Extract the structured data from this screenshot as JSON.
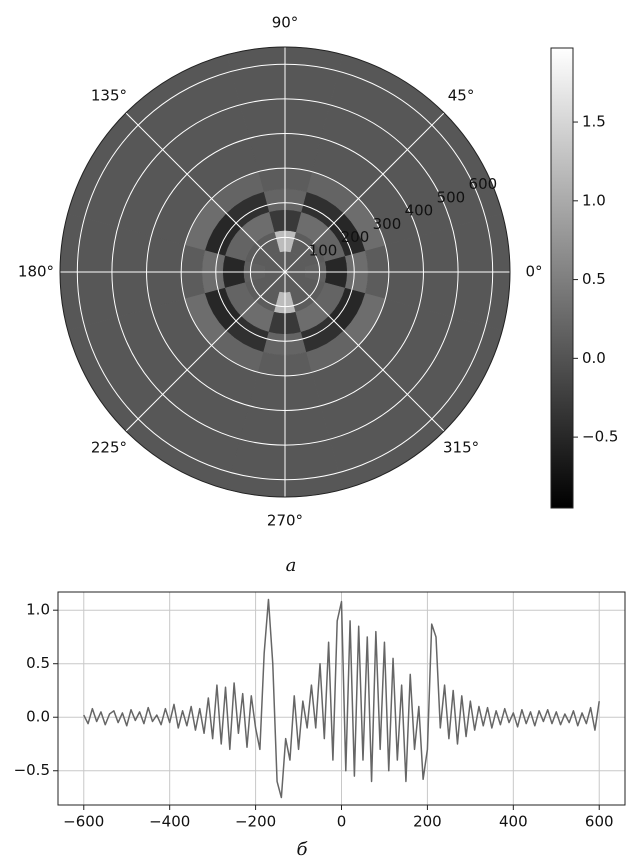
{
  "chart_data": [
    {
      "type": "polar-heatmap",
      "caption": "a",
      "theta_edges": [
        -15,
        15,
        45,
        75,
        105,
        135,
        165,
        195,
        225,
        255,
        285,
        315,
        345
      ],
      "r_edges": [
        0,
        60,
        120,
        180,
        240,
        300,
        650
      ],
      "z": [
        [
          0.1,
          0.15,
          -0.5,
          0.3,
          0.1,
          0.05
        ],
        [
          0.1,
          0.1,
          0.2,
          -0.5,
          0.3,
          0.05
        ],
        [
          0.1,
          0.1,
          0.3,
          -0.4,
          0.2,
          0.05
        ],
        [
          0.1,
          1.2,
          -0.3,
          0.2,
          0.1,
          0.05
        ],
        [
          0.1,
          0.1,
          0.3,
          -0.4,
          0.2,
          0.05
        ],
        [
          0.1,
          0.1,
          0.2,
          -0.5,
          0.3,
          0.05
        ],
        [
          0.1,
          0.15,
          -0.5,
          0.3,
          0.1,
          0.05
        ],
        [
          0.1,
          0.1,
          0.2,
          -0.5,
          0.3,
          0.05
        ],
        [
          0.1,
          0.1,
          0.3,
          -0.4,
          0.2,
          0.05
        ],
        [
          0.1,
          1.2,
          -0.3,
          0.2,
          0.1,
          0.05
        ],
        [
          0.1,
          0.1,
          0.3,
          -0.4,
          0.2,
          0.05
        ],
        [
          0.1,
          0.1,
          0.2,
          -0.5,
          0.3,
          0.05
        ]
      ],
      "rlim": [
        0,
        650
      ],
      "rticks": [
        100,
        200,
        300,
        400,
        500,
        600
      ],
      "rlabel_angle": 22.5,
      "thetaticks": [
        {
          "value": 0,
          "label": "0°"
        },
        {
          "value": 45,
          "label": "45°"
        },
        {
          "value": 90,
          "label": "90°"
        },
        {
          "value": 135,
          "label": "135°"
        },
        {
          "value": 180,
          "label": "180°"
        },
        {
          "value": 225,
          "label": "225°"
        },
        {
          "value": 270,
          "label": "270°"
        },
        {
          "value": 315,
          "label": "315°"
        }
      ],
      "cmap": [
        "#000000",
        "#ffffff"
      ],
      "clim": [
        -0.95,
        1.97
      ],
      "cticks": [
        {
          "value": -0.5,
          "label": "−0.5"
        },
        {
          "value": 0,
          "label": "0.0"
        },
        0.5,
        {
          "value": 1,
          "label": "1.0"
        },
        1.5
      ],
      "grid": true
    },
    {
      "type": "line",
      "caption": "б",
      "color": "#666666",
      "x": [
        -600,
        -590,
        -580,
        -570,
        -560,
        -550,
        -540,
        -530,
        -520,
        -510,
        -500,
        -490,
        -480,
        -470,
        -460,
        -450,
        -440,
        -430,
        -420,
        -410,
        -400,
        -390,
        -380,
        -370,
        -360,
        -350,
        -340,
        -330,
        -320,
        -310,
        -300,
        -290,
        -280,
        -270,
        -260,
        -250,
        -240,
        -230,
        -220,
        -210,
        -200,
        -190,
        -180,
        -170,
        -160,
        -150,
        -140,
        -130,
        -120,
        -110,
        -100,
        -90,
        -80,
        -70,
        -60,
        -50,
        -40,
        -30,
        -20,
        -10,
        0,
        10,
        20,
        30,
        40,
        50,
        60,
        70,
        80,
        90,
        100,
        110,
        120,
        130,
        140,
        150,
        160,
        170,
        180,
        190,
        200,
        210,
        220,
        230,
        240,
        250,
        260,
        270,
        280,
        290,
        300,
        310,
        320,
        330,
        340,
        350,
        360,
        370,
        380,
        390,
        400,
        410,
        420,
        430,
        440,
        450,
        460,
        470,
        480,
        490,
        500,
        510,
        520,
        530,
        540,
        550,
        560,
        570,
        580,
        590,
        600
      ],
      "values": [
        0.02,
        -0.06,
        0.08,
        -0.04,
        0.05,
        -0.07,
        0.03,
        0.06,
        -0.05,
        0.04,
        -0.08,
        0.07,
        -0.03,
        0.05,
        -0.06,
        0.09,
        -0.04,
        0.02,
        -0.07,
        0.08,
        -0.05,
        0.12,
        -0.1,
        0.06,
        -0.08,
        0.1,
        -0.12,
        0.08,
        -0.15,
        0.18,
        -0.2,
        0.3,
        -0.25,
        0.28,
        -0.3,
        0.32,
        -0.15,
        0.22,
        -0.28,
        0.2,
        -0.1,
        -0.3,
        0.6,
        1.1,
        0.5,
        -0.6,
        -0.75,
        -0.2,
        -0.4,
        0.2,
        -0.3,
        0.15,
        -0.1,
        0.3,
        -0.1,
        0.5,
        -0.2,
        0.7,
        -0.4,
        0.9,
        1.08,
        -0.5,
        0.9,
        -0.55,
        0.85,
        -0.4,
        0.75,
        -0.6,
        0.8,
        -0.3,
        0.7,
        -0.5,
        0.55,
        -0.4,
        0.3,
        -0.6,
        0.4,
        -0.3,
        0.1,
        -0.58,
        -0.3,
        0.87,
        0.75,
        -0.1,
        0.3,
        -0.2,
        0.25,
        -0.25,
        0.2,
        -0.18,
        0.15,
        -0.12,
        0.1,
        -0.08,
        0.09,
        -0.1,
        0.06,
        -0.07,
        0.08,
        -0.05,
        0.04,
        -0.09,
        0.07,
        -0.06,
        0.05,
        -0.08,
        0.06,
        -0.04,
        0.07,
        -0.06,
        0.05,
        -0.07,
        0.03,
        -0.05,
        0.06,
        -0.08,
        0.04,
        -0.06,
        0.09,
        -0.12,
        0.15
      ],
      "xlim": [
        -660,
        660
      ],
      "ylim": [
        -0.82,
        1.17
      ],
      "xticks": [
        {
          "value": -600,
          "label": "−600"
        },
        {
          "value": -400,
          "label": "−400"
        },
        {
          "value": -200,
          "label": "−200"
        },
        0,
        200,
        400,
        600
      ],
      "yticks": [
        {
          "value": -0.5,
          "label": "−0.5"
        },
        {
          "value": 0,
          "label": "0.0"
        },
        0.5,
        {
          "value": 1,
          "label": "1.0"
        }
      ],
      "grid": true
    }
  ]
}
